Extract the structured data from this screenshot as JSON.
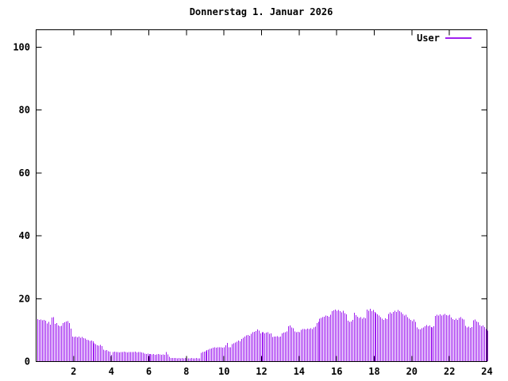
{
  "chart": {
    "title": "Donnerstag 1. Januar 2026",
    "legend": {
      "label": "User"
    },
    "colors": {
      "series": "#a020f0",
      "axis": "#000000",
      "text": "#000000",
      "background": "#ffffff"
    }
  },
  "chart_data": {
    "type": "bar",
    "title": "Donnerstag 1. Januar 2026",
    "xlabel": "",
    "ylabel": "",
    "xlim": [
      0,
      24
    ],
    "ylim": [
      0,
      105
    ],
    "x_ticks": [
      2,
      4,
      6,
      8,
      10,
      12,
      14,
      16,
      18,
      20,
      22,
      24
    ],
    "y_ticks": [
      0,
      20,
      40,
      60,
      80,
      100
    ],
    "grid": false,
    "legend_position": "top-right",
    "bar_style": "impulses",
    "sample_interval_minutes": 5,
    "series": [
      {
        "name": "User",
        "color": "#a020f0",
        "values": [
          13.5,
          13.2,
          13.4,
          13.1,
          13.3,
          13.0,
          12.1,
          12.6,
          11.8,
          14.0,
          14.1,
          12.0,
          12.2,
          11.5,
          11.2,
          11.4,
          12.3,
          12.5,
          12.7,
          12.9,
          12.3,
          10.5,
          7.9,
          7.8,
          8.0,
          7.7,
          7.9,
          7.6,
          7.8,
          7.5,
          7.3,
          7.0,
          6.8,
          6.6,
          6.7,
          6.5,
          5.8,
          5.5,
          5.2,
          5.0,
          5.3,
          4.9,
          3.8,
          3.5,
          3.6,
          3.3,
          3.1,
          2.2,
          3.0,
          3.1,
          3.0,
          3.0,
          2.9,
          3.0,
          3.0,
          3.1,
          3.0,
          2.9,
          3.0,
          3.0,
          3.0,
          3.0,
          3.1,
          2.9,
          3.0,
          3.0,
          2.9,
          2.8,
          2.5,
          2.4,
          2.5,
          2.4,
          2.4,
          2.3,
          2.4,
          2.2,
          2.3,
          2.4,
          2.3,
          2.2,
          2.3,
          2.2,
          3.0,
          2.3,
          1.5,
          1.2,
          1.1,
          1.2,
          1.1,
          1.0,
          1.1,
          1.0,
          1.1,
          1.0,
          1.1,
          1.0,
          1.0,
          1.0,
          1.1,
          1.0,
          1.0,
          1.1,
          1.0,
          1.0,
          2.8,
          3.0,
          3.2,
          3.3,
          3.6,
          3.8,
          4.0,
          4.2,
          4.4,
          4.5,
          4.4,
          4.6,
          4.5,
          4.6,
          4.4,
          4.6,
          5.2,
          5.9,
          4.5,
          4.6,
          5.5,
          5.8,
          6.0,
          6.3,
          6.7,
          6.5,
          7.2,
          7.6,
          8.0,
          8.3,
          8.5,
          8.2,
          8.8,
          9.3,
          9.5,
          9.7,
          10.2,
          9.9,
          9.0,
          9.3,
          9.4,
          9.0,
          9.2,
          9.3,
          8.8,
          9.0,
          7.8,
          8.0,
          7.9,
          8.1,
          7.8,
          8.0,
          9.0,
          9.2,
          9.4,
          9.6,
          11.3,
          11.5,
          10.9,
          10.6,
          9.6,
          9.4,
          9.5,
          9.3,
          10.1,
          10.3,
          10.4,
          10.2,
          10.5,
          10.3,
          10.6,
          10.4,
          10.9,
          11.1,
          12.3,
          12.6,
          13.6,
          13.9,
          14.1,
          14.3,
          14.7,
          14.5,
          14.3,
          14.9,
          16.0,
          16.3,
          16.5,
          16.2,
          16.4,
          16.0,
          15.6,
          16.2,
          15.4,
          15.0,
          13.0,
          12.6,
          12.8,
          13.2,
          15.5,
          14.8,
          14.3,
          13.9,
          14.1,
          13.7,
          14.0,
          13.8,
          16.6,
          16.2,
          16.8,
          16.0,
          16.4,
          15.8,
          15.4,
          15.0,
          14.6,
          14.2,
          13.6,
          13.3,
          13.8,
          13.5,
          15.2,
          15.6,
          15.3,
          15.8,
          16.2,
          15.8,
          16.4,
          16.0,
          15.6,
          15.2,
          14.6,
          14.9,
          14.2,
          13.6,
          13.2,
          12.9,
          13.4,
          12.6,
          10.9,
          10.4,
          10.2,
          10.6,
          10.8,
          11.3,
          11.6,
          11.2,
          11.5,
          11.0,
          10.9,
          11.2,
          14.5,
          14.9,
          14.6,
          15.0,
          14.7,
          14.9,
          15.1,
          14.8,
          14.6,
          14.9,
          14.0,
          13.5,
          13.2,
          13.7,
          13.3,
          13.9,
          14.2,
          13.6,
          13.4,
          11.4,
          10.9,
          11.1,
          10.7,
          11.0,
          13.1,
          13.4,
          12.8,
          12.5,
          11.6,
          11.2,
          11.5,
          11.0,
          10.3,
          9.9
        ]
      }
    ]
  }
}
